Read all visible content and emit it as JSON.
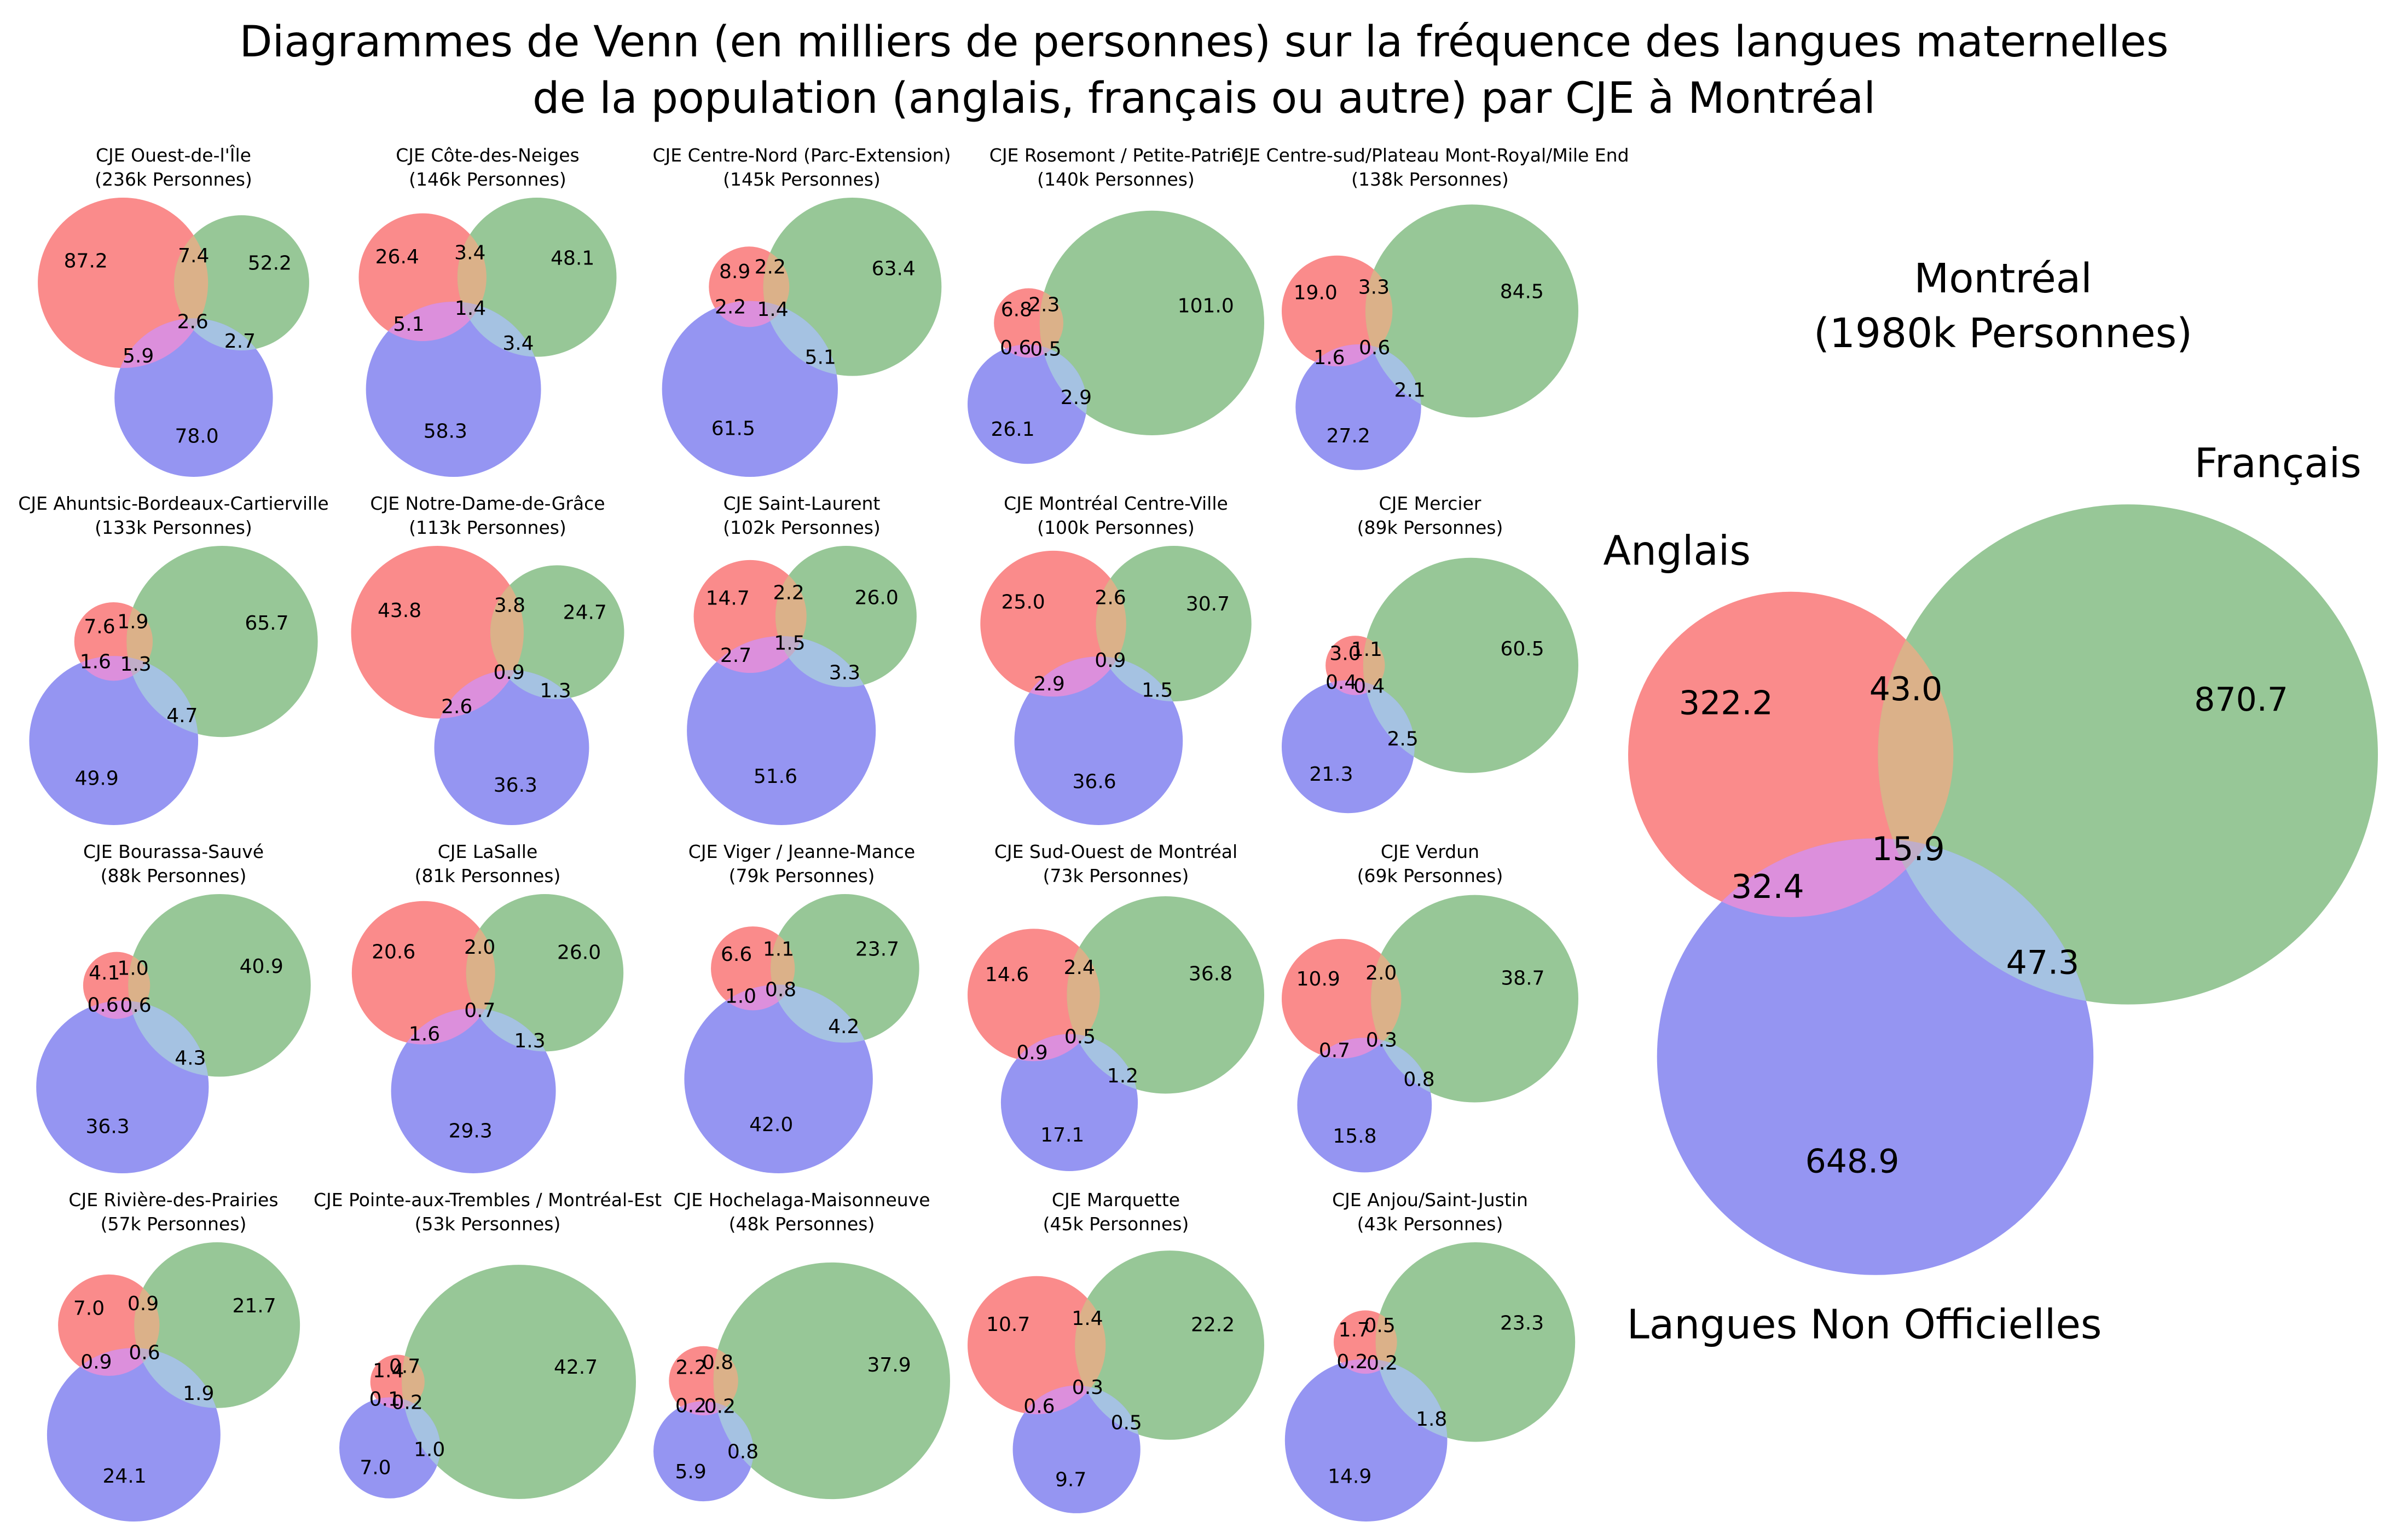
{
  "title": {
    "line1": "Diagrammes de Venn (en milliers de personnes) sur la fréquence des langues maternelles",
    "line2": "de la population (anglais, français ou autre) par CJE à Montréal"
  },
  "set_labels": {
    "anglais": "Anglais",
    "francais": "Français",
    "autres": "Langues Non Officielles"
  },
  "colors": {
    "anglais": "#FA8B8B",
    "francais": "#97C797",
    "autres": "#9595F2",
    "anglais_francais": "#DBB189",
    "anglais_autres": "#DC8FDC",
    "francais_autres": "#A5C2E2",
    "triple": "#C0ADC8"
  },
  "chart_data": {
    "type": "venn",
    "units": "milliers de personnes",
    "region_keys": {
      "a": "anglais seulement",
      "f": "français seulement",
      "n": "langues non officielles seulement",
      "af": "anglais et français",
      "an": "anglais et langues non officielles",
      "fn": "français et langues non officielles",
      "afn": "anglais, français et langues non officielles"
    },
    "montreal": {
      "name": "Montréal",
      "population": "(1980k Personnes)",
      "values": {
        "a": "322.2",
        "f": "870.7",
        "n": "648.9",
        "af": "43.0",
        "an": "32.4",
        "fn": "47.3",
        "afn": "15.9"
      }
    },
    "cje": [
      {
        "name": "CJE Ouest-de-l'Île",
        "population": "(236k Personnes)",
        "values": {
          "a": "87.2",
          "f": "52.2",
          "n": "78.0",
          "af": "7.4",
          "an": "5.9",
          "fn": "2.7",
          "afn": "2.6"
        }
      },
      {
        "name": "CJE Côte-des-Neiges",
        "population": "(146k Personnes)",
        "values": {
          "a": "26.4",
          "f": "48.1",
          "n": "58.3",
          "af": "3.4",
          "an": "5.1",
          "fn": "3.4",
          "afn": "1.4"
        }
      },
      {
        "name": "CJE Centre-Nord (Parc-Extension)",
        "population": "(145k Personnes)",
        "values": {
          "a": "8.9",
          "f": "63.4",
          "n": "61.5",
          "af": "2.2",
          "an": "2.2",
          "fn": "5.1",
          "afn": "1.4"
        }
      },
      {
        "name": "CJE Rosemont / Petite-Patrie",
        "population": "(140k Personnes)",
        "values": {
          "a": "6.8",
          "f": "101.0",
          "n": "26.1",
          "af": "2.3",
          "an": "0.6",
          "fn": "2.9",
          "afn": "0.5"
        }
      },
      {
        "name": "CJE Centre-sud/Plateau Mont-Royal/Mile End",
        "population": "(138k Personnes)",
        "values": {
          "a": "19.0",
          "f": "84.5",
          "n": "27.2",
          "af": "3.3",
          "an": "1.6",
          "fn": "2.1",
          "afn": "0.6"
        }
      },
      {
        "name": "CJE Ahuntsic-Bordeaux-Cartierville",
        "population": "(133k Personnes)",
        "values": {
          "a": "7.6",
          "f": "65.7",
          "n": "49.9",
          "af": "1.9",
          "an": "1.6",
          "fn": "4.7",
          "afn": "1.3"
        }
      },
      {
        "name": "CJE Notre-Dame-de-Grâce",
        "population": "(113k Personnes)",
        "values": {
          "a": "43.8",
          "f": "24.7",
          "n": "36.3",
          "af": "3.8",
          "an": "2.6",
          "fn": "1.3",
          "afn": "0.9"
        }
      },
      {
        "name": "CJE Saint-Laurent",
        "population": "(102k Personnes)",
        "values": {
          "a": "14.7",
          "f": "26.0",
          "n": "51.6",
          "af": "2.2",
          "an": "2.7",
          "fn": "3.3",
          "afn": "1.5"
        }
      },
      {
        "name": "CJE Montréal Centre-Ville",
        "population": "(100k Personnes)",
        "values": {
          "a": "25.0",
          "f": "30.7",
          "n": "36.6",
          "af": "2.6",
          "an": "2.9",
          "fn": "1.5",
          "afn": "0.9"
        }
      },
      {
        "name": "CJE Mercier",
        "population": "(89k Personnes)",
        "values": {
          "a": "3.0",
          "f": "60.5",
          "n": "21.3",
          "af": "1.1",
          "an": "0.4",
          "fn": "2.5",
          "afn": "0.4"
        }
      },
      {
        "name": "CJE Bourassa-Sauvé",
        "population": "(88k Personnes)",
        "values": {
          "a": "4.1",
          "f": "40.9",
          "n": "36.3",
          "af": "1.0",
          "an": "0.6",
          "fn": "4.3",
          "afn": "0.6"
        }
      },
      {
        "name": "CJE LaSalle",
        "population": "(81k Personnes)",
        "values": {
          "a": "20.6",
          "f": "26.0",
          "n": "29.3",
          "af": "2.0",
          "an": "1.6",
          "fn": "1.3",
          "afn": "0.7"
        }
      },
      {
        "name": "CJE Viger / Jeanne-Mance",
        "population": "(79k Personnes)",
        "values": {
          "a": "6.6",
          "f": "23.7",
          "n": "42.0",
          "af": "1.1",
          "an": "1.0",
          "fn": "4.2",
          "afn": "0.8"
        }
      },
      {
        "name": "CJE Sud-Ouest de Montréal",
        "population": "(73k Personnes)",
        "values": {
          "a": "14.6",
          "f": "36.8",
          "n": "17.1",
          "af": "2.4",
          "an": "0.9",
          "fn": "1.2",
          "afn": "0.5"
        }
      },
      {
        "name": "CJE Verdun",
        "population": "(69k Personnes)",
        "values": {
          "a": "10.9",
          "f": "38.7",
          "n": "15.8",
          "af": "2.0",
          "an": "0.7",
          "fn": "0.8",
          "afn": "0.3"
        }
      },
      {
        "name": "CJE Rivière-des-Prairies",
        "population": "(57k Personnes)",
        "values": {
          "a": "7.0",
          "f": "21.7",
          "n": "24.1",
          "af": "0.9",
          "an": "0.9",
          "fn": "1.9",
          "afn": "0.6"
        }
      },
      {
        "name": "CJE Pointe-aux-Trembles / Montréal-Est",
        "population": "(53k Personnes)",
        "values": {
          "a": "1.4",
          "f": "42.7",
          "n": "7.0",
          "af": "0.7",
          "an": "0.1",
          "fn": "1.0",
          "afn": "0.2"
        }
      },
      {
        "name": "CJE Hochelaga-Maisonneuve",
        "population": "(48k Personnes)",
        "values": {
          "a": "2.2",
          "f": "37.9",
          "n": "5.9",
          "af": "0.8",
          "an": "0.2",
          "fn": "0.8",
          "afn": "0.2"
        }
      },
      {
        "name": "CJE Marquette",
        "population": "(45k Personnes)",
        "values": {
          "a": "10.7",
          "f": "22.2",
          "n": "9.7",
          "af": "1.4",
          "an": "0.6",
          "fn": "0.5",
          "afn": "0.3"
        }
      },
      {
        "name": "CJE Anjou/Saint-Justin",
        "population": "(43k Personnes)",
        "values": {
          "a": "1.7",
          "f": "23.3",
          "n": "14.9",
          "af": "0.5",
          "an": "0.2",
          "fn": "1.8",
          "afn": "0.2"
        }
      }
    ]
  }
}
